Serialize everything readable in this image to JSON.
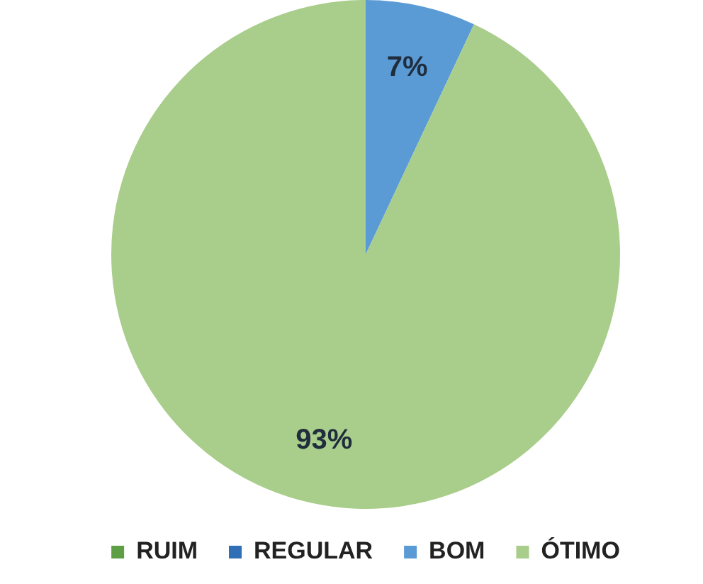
{
  "chart_data": {
    "type": "pie",
    "categories": [
      "RUIM",
      "REGULAR",
      "BOM",
      "ÓTIMO"
    ],
    "values": [
      0,
      0,
      7,
      93
    ],
    "colors": [
      "#5e9f45",
      "#2f6fb5",
      "#5b9bd5",
      "#a9cd8a"
    ],
    "value_labels": [
      null,
      null,
      "7%",
      "93%"
    ],
    "legend": "bottom"
  }
}
